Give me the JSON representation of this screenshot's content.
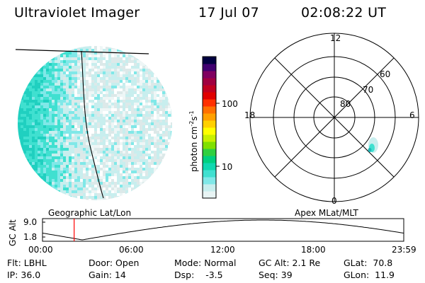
{
  "header": {
    "title": "Ultraviolet Imager",
    "date": "17 Jul 07",
    "time": "02:08:22 UT"
  },
  "colorbar": {
    "unit_label": "photon cm",
    "unit_sup1": "-2",
    "unit_mid": "s",
    "unit_sup2": "-1",
    "ticks": [
      "100",
      "10"
    ],
    "colors": [
      "#e8f4f4",
      "#c8eeee",
      "#80e8e8",
      "#40e0d0",
      "#10d8b0",
      "#00d080",
      "#30d040",
      "#80e000",
      "#c8f000",
      "#ffff00",
      "#ffd000",
      "#ffa000",
      "#ff7000",
      "#ff3000",
      "#e00000",
      "#c00020",
      "#a00040",
      "#800060",
      "#400070",
      "#000040"
    ]
  },
  "polar": {
    "labels": {
      "top": "12",
      "bottom": "0",
      "left": "18",
      "right": "6"
    },
    "rings": [
      "80",
      "70",
      "60"
    ]
  },
  "altitude_panel": {
    "ylabel": "GC Alt",
    "yticks": [
      "9.0",
      "1.8"
    ],
    "left_title": "Geographic Lat/Lon",
    "right_title": "Apex MLat/MLT",
    "xticks": [
      "00:00",
      "06:00",
      "12:00",
      "18:00",
      "23:59"
    ],
    "marker_time_fraction": 0.0876,
    "marker_color": "#ff0000"
  },
  "info_row1": [
    {
      "label": "Flt:",
      "value": "LBHL"
    },
    {
      "label": "Door:",
      "value": "Open"
    },
    {
      "label": "Mode:",
      "value": "Normal"
    },
    {
      "label": "GC Alt:",
      "value": "2.1 Re"
    },
    {
      "label": "GLat:",
      "value": "70.8"
    }
  ],
  "info_row2": [
    {
      "label": "IP:",
      "value": "36.0"
    },
    {
      "label": "Gain:",
      "value": "14"
    },
    {
      "label": "Dsp:",
      "value": "-3.5"
    },
    {
      "label": "Seq:",
      "value": "39"
    },
    {
      "label": "GLon:",
      "value": "11.9"
    }
  ]
}
